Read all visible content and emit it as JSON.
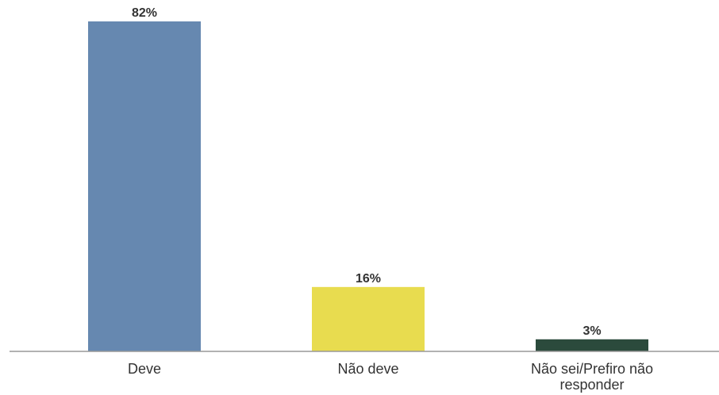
{
  "chart_data": {
    "type": "bar",
    "title": "",
    "xlabel": "",
    "ylabel": "",
    "ylim": [
      0,
      82
    ],
    "grid": false,
    "categories": [
      [
        "Deve"
      ],
      [
        "Não deve"
      ],
      [
        "Não sei/Prefiro não",
        "responder"
      ]
    ],
    "values": [
      82,
      16,
      3
    ],
    "value_labels": [
      "82%",
      "16%",
      "3%"
    ],
    "colors": [
      "#6688b0",
      "#e8dc4f",
      "#2b4a3c"
    ]
  }
}
